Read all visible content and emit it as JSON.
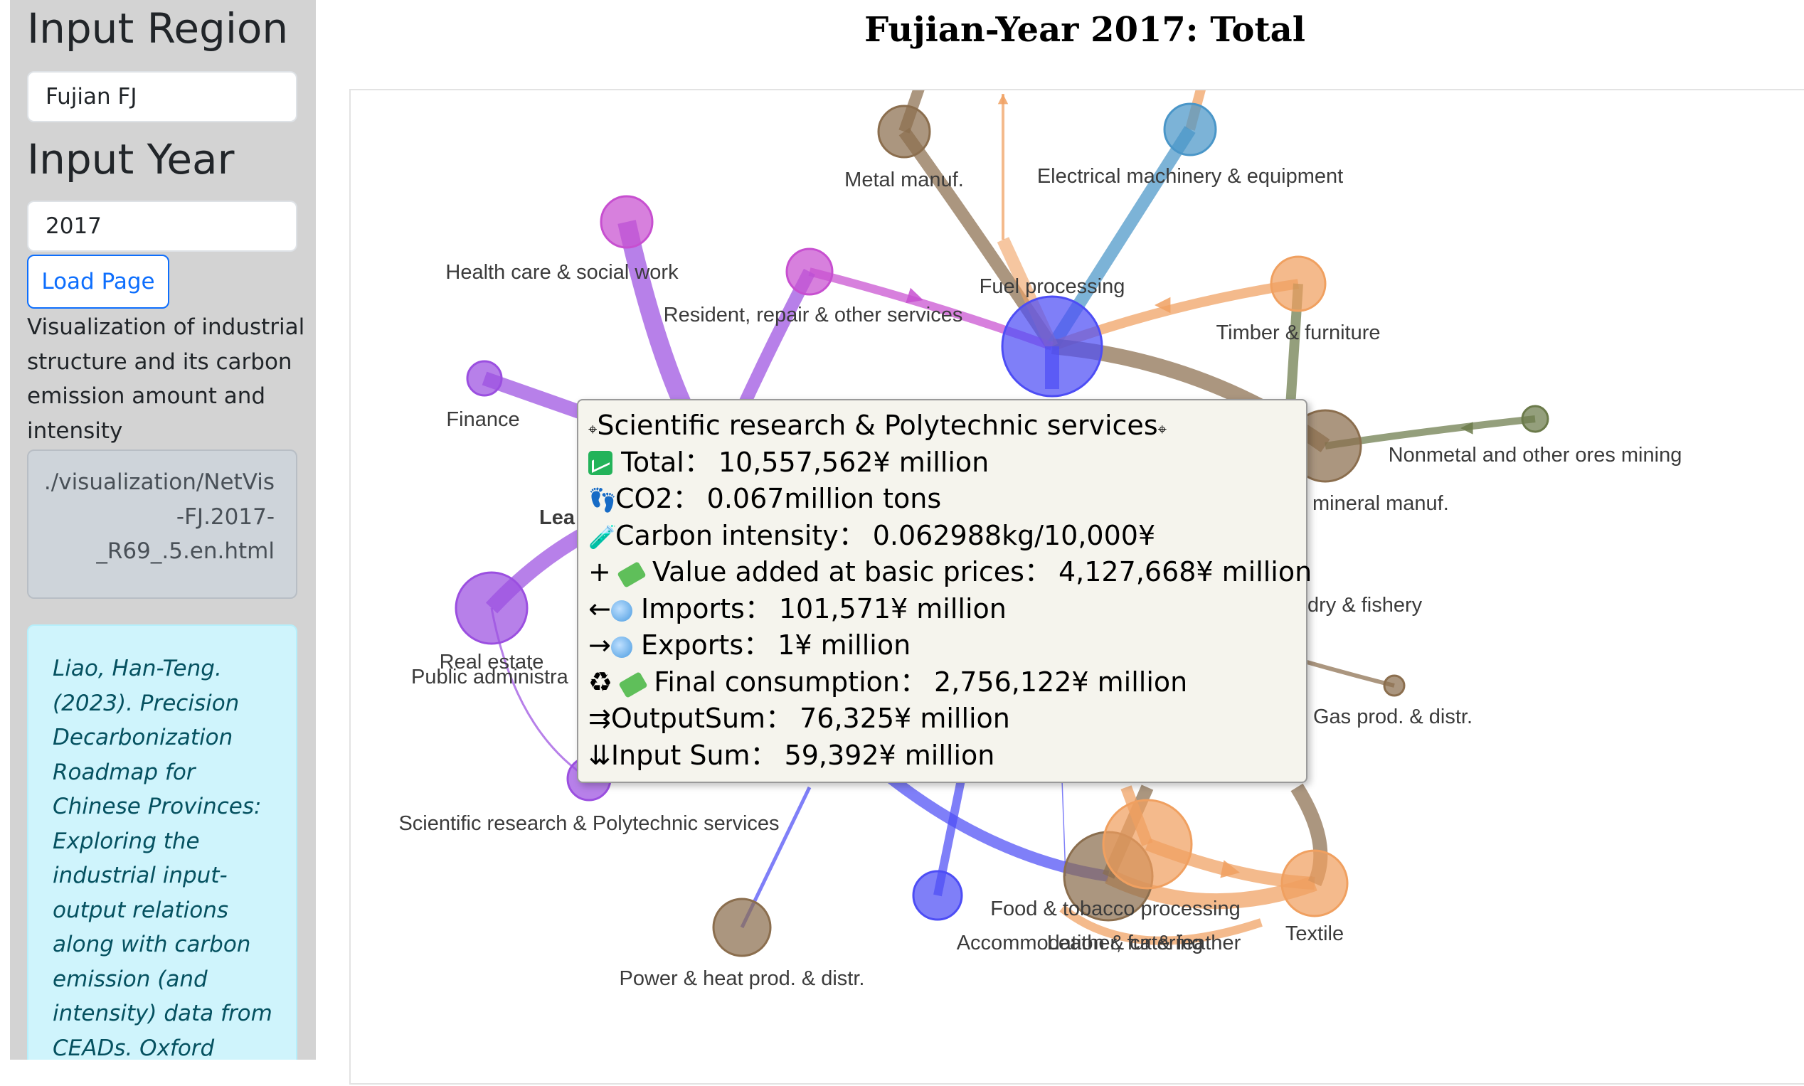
{
  "sidebar": {
    "region_heading": "Input Region",
    "region_value": "Fujian FJ",
    "year_heading": "Input Year",
    "year_value": "2017",
    "load_button": "Load Page",
    "description": "Visualization of industrial structure and its carbon emission amount and intensity",
    "path": "./visualization/NetVis-FJ.2017-_R69_.5.en.html",
    "citation": "Liao, Han-Teng. (2023). Precision Decarbonization Roadmap for Chinese Provinces: Exploring the industrial input-output relations along with carbon emission (and intensity) data from CEADs. Oxford Roadmapping . Note: Please kindly"
  },
  "chart": {
    "title": "Fujian-Year 2017: Total"
  },
  "colors": {
    "purple": "#9b4fe0",
    "magenta": "#c74fd0",
    "blue": "#4d4df5",
    "orange": "#f0a060",
    "brown": "#8b6e4e",
    "olive": "#6b7a4a",
    "steel_blue": "#4a96c8"
  },
  "nodes": [
    {
      "id": "metal",
      "label": "Metal manuf.",
      "color": "brown"
    },
    {
      "id": "electrical",
      "label": "Electrical machinery & equipment",
      "color": "steel_blue"
    },
    {
      "id": "fuel",
      "label": "Fuel processing",
      "color": "blue"
    },
    {
      "id": "health",
      "label": "Health care & social work",
      "color": "magenta"
    },
    {
      "id": "resident",
      "label": "Resident, repair & other services",
      "color": "magenta"
    },
    {
      "id": "timber",
      "label": "Timber & furniture",
      "color": "orange"
    },
    {
      "id": "finance",
      "label": "Finance",
      "color": "purple"
    },
    {
      "id": "nonmetal_ores",
      "label": "Nonmetal and other ores mining",
      "color": "olive"
    },
    {
      "id": "mineral",
      "label": "mineral manuf.",
      "color": "brown"
    },
    {
      "id": "lea",
      "label": "Lea",
      "color": "purple"
    },
    {
      "id": "forestry",
      "label": "dry & fishery",
      "color": "olive"
    },
    {
      "id": "real_estate",
      "label": "Real estate",
      "color": "purple"
    },
    {
      "id": "public_admin",
      "label": "Public administra",
      "color": "purple"
    },
    {
      "id": "gas",
      "label": "Gas prod. & distr.",
      "color": "brown"
    },
    {
      "id": "scientific",
      "label": "Scientific research & Polytechnic services",
      "color": "purple"
    },
    {
      "id": "food",
      "label": "Food & tobacco processing",
      "color": "brown"
    },
    {
      "id": "textile",
      "label": "Textile",
      "color": "orange"
    },
    {
      "id": "accommodation",
      "label": "Accommodation & catering",
      "color": "blue"
    },
    {
      "id": "leather",
      "label": "Leather, fur & feather",
      "color": "orange"
    },
    {
      "id": "power",
      "label": "Power & heat prod. & distr.",
      "color": "brown"
    }
  ],
  "tooltip": {
    "title": "Scientific research & Polytechnic services",
    "title_mark": "⌖",
    "sep": "：",
    "rows": [
      {
        "icon": "chart-icon",
        "label": "Total",
        "value": "10,557,562¥ million"
      },
      {
        "icon": "footprints-icon",
        "symbol": "👣",
        "label": "CO2",
        "value": "0.067million tons"
      },
      {
        "icon": "test-tube-icon",
        "symbol": "🧪",
        "label": "Carbon intensity",
        "value": "0.062988kg/10,000¥"
      },
      {
        "icon": "money-icon",
        "prefix": "+",
        "label": "Value added at basic prices",
        "value": "4,127,668¥ million"
      },
      {
        "icon": "globe-icon",
        "prefix": "←",
        "label": "Imports",
        "value": "101,571¥ million"
      },
      {
        "icon": "globe-icon",
        "prefix": "→",
        "label": "Exports",
        "value": "1¥ million"
      },
      {
        "icon": "recycle-money-icon",
        "prefix": "♻",
        "label": "Final consumption",
        "value": "2,756,122¥ million"
      },
      {
        "icon": "output-arrows-icon",
        "prefix": "⇉",
        "label": "OutputSum",
        "value": "76,325¥ million"
      },
      {
        "icon": "input-arrows-icon",
        "prefix": "⇊",
        "label": "Input Sum",
        "value": "59,392¥ million"
      }
    ]
  }
}
